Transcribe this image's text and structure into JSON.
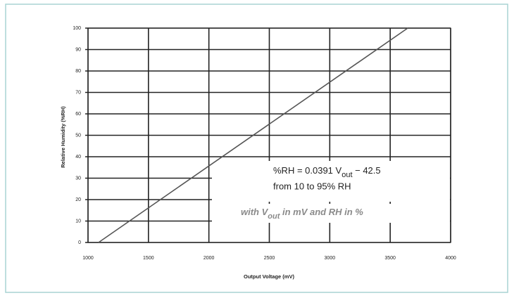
{
  "chart_data": {
    "type": "line",
    "xlabel": "Output Voltage (mV)",
    "ylabel": "Relative Humidity (%RH)",
    "x": [
      1087,
      3645
    ],
    "values": [
      0,
      100
    ],
    "color": "#555555",
    "xlim": [
      1000,
      4000
    ],
    "xticks": [
      1000,
      1500,
      2000,
      2500,
      3000,
      3500,
      4000
    ],
    "ylim": [
      0,
      100
    ],
    "yticks": [
      0,
      10,
      20,
      30,
      40,
      50,
      60,
      70,
      80,
      90,
      100
    ],
    "grid": true,
    "annotations": {
      "equation": [
        "%RH = 0.0391 V",
        "out",
        " − 42.5"
      ],
      "range": "from 10 to 95% RH",
      "units": [
        "with V",
        "out",
        " in mV and RH in %"
      ]
    }
  }
}
